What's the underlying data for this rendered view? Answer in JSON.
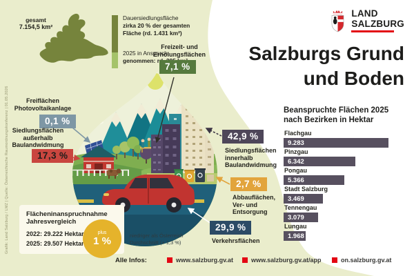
{
  "page": {
    "title": "Salzburgs Grund und Boden",
    "logo": {
      "line1": "LAND",
      "line2": "SALZBURG",
      "underline_color": "#e30613"
    },
    "credit": "Grafik: Land Salzburg / LMZ | Quelle: Österreichische Raumordnungskonferenz | 01.05.2026"
  },
  "overview": {
    "total_label": "gesamt",
    "total_value": "7.154,5 km²",
    "blocks": [
      {
        "lines": [
          "Dauersiedlungsfläche",
          "zirka 20 % der gesamten",
          "Fläche (rd. 1.431 km²)"
        ]
      },
      {
        "lines": [
          "2025 in Anspruch",
          "genommen: rd. 295 km²"
        ]
      }
    ],
    "bar_colors": {
      "total": "#76843c",
      "used": "#a5c36a"
    }
  },
  "callouts": [
    {
      "id": "freizeit",
      "value": "7,1 %",
      "color": "#567a3e",
      "text_color": "#ffffff",
      "label_lines": [
        "Freizeit- und",
        "Erholungsflächen"
      ]
    },
    {
      "id": "photovoltaik",
      "value": "0,1 %",
      "color": "#7e97a5",
      "text_color": "#ffffff",
      "label_lines": [
        "Freiflächen",
        "Photovoltaikanlage"
      ]
    },
    {
      "id": "siedlung-ausserhalb",
      "value": "17,3 %",
      "color": "#c9463f",
      "text_color": "#1d1d1b",
      "label_lines": [
        "Siedlungsflächen",
        "außerhalb",
        "Baulandwidmung"
      ]
    },
    {
      "id": "siedlung-innerhalb",
      "value": "42,9 %",
      "color": "#4e4659",
      "text_color": "#ffffff",
      "label_lines": [
        "Siedlungsflächen",
        "innerhalb",
        "Baulandwidmung"
      ]
    },
    {
      "id": "abbau",
      "value": "2,7 %",
      "color": "#e2a43c",
      "text_color": "#ffffff",
      "label_lines": [
        "Abbauflächen,",
        "Ver- und",
        "Entsorgung"
      ]
    },
    {
      "id": "verkehr",
      "value": "29,9 %",
      "color": "#2c4b66",
      "text_color": "#ffffff",
      "label_lines": [
        "Verkehrsflächen"
      ]
    }
  ],
  "comparison": {
    "title_lines": [
      "Flächeninanspruchnahme",
      "Jahresvergleich"
    ],
    "rows": [
      "2022: 29.222 Hektar",
      "2025: 29.507 Hektar"
    ],
    "badge_small": "plus",
    "badge_big": "1 %",
    "badge_color": "#e5b32b",
    "note_lines": [
      "niedriger als Österreich",
      "Durchschnitt (+ 1,3 %)"
    ]
  },
  "chart_data": {
    "type": "bar",
    "title": "Beanspruchte Flächen 2025 nach Bezirken in Hektar",
    "categories": [
      "Flachgau",
      "Pinzgau",
      "Pongau",
      "Stadt Salzburg",
      "Tennengau",
      "Lungau"
    ],
    "values": [
      9283,
      6342,
      5366,
      3469,
      3079,
      1968
    ],
    "value_labels": [
      "9.283",
      "6.342",
      "5.366",
      "3.469",
      "3.079",
      "1.968"
    ],
    "unit": "Hektar",
    "bar_color": "#57505f",
    "xlim": [
      0,
      9283
    ],
    "orientation": "horizontal"
  },
  "footer": {
    "label": "Alle Infos:",
    "links": [
      "www.salzburg.gv.at",
      "www.salzburg.gv.at/app",
      "on.salzburg.gv.at"
    ],
    "bullet_color": "#e30613"
  },
  "colors": {
    "background_blob": "#eaedcc",
    "map": "#76843c",
    "accent_red": "#e30613"
  }
}
